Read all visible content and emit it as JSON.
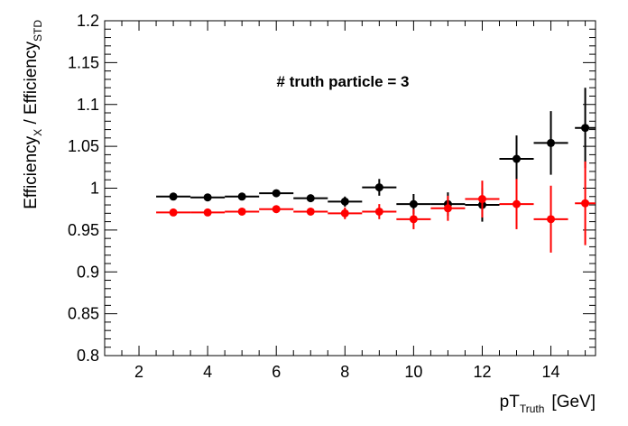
{
  "chart_data": {
    "type": "scatter",
    "annotation": "# truth particle = 3",
    "xlabel": {
      "main": "pT",
      "sub": "Truth",
      "unit": "[GeV]"
    },
    "ylabel": {
      "part1": "Efficiency",
      "sub1": "X",
      "separator": " / Efficiency",
      "sub2": "STD"
    },
    "xlim": [
      1,
      15.3
    ],
    "ylim": [
      0.8,
      1.2
    ],
    "x_ticks": [
      2,
      4,
      6,
      8,
      10,
      12,
      14
    ],
    "y_ticks": [
      0.8,
      0.85,
      0.9,
      0.95,
      1,
      1.05,
      1.1,
      1.15,
      1.2
    ],
    "y_tick_labels": [
      "0.8",
      "0.85",
      "0.9",
      "0.95",
      "1",
      "1.05",
      "1.1",
      "1.15",
      "1.2"
    ],
    "grid": false,
    "series": [
      {
        "color": "#000000",
        "points": [
          {
            "x": 3,
            "xerr": 0.5,
            "y": 0.99,
            "yerr": 0.003
          },
          {
            "x": 4,
            "xerr": 0.5,
            "y": 0.989,
            "yerr": 0.003
          },
          {
            "x": 5,
            "xerr": 0.5,
            "y": 0.99,
            "yerr": 0.003
          },
          {
            "x": 6,
            "xerr": 0.5,
            "y": 0.994,
            "yerr": 0.003
          },
          {
            "x": 7,
            "xerr": 0.5,
            "y": 0.988,
            "yerr": 0.004
          },
          {
            "x": 8,
            "xerr": 0.5,
            "y": 0.984,
            "yerr": 0.006
          },
          {
            "x": 9,
            "xerr": 0.5,
            "y": 1.001,
            "yerr": 0.01
          },
          {
            "x": 10,
            "xerr": 0.5,
            "y": 0.981,
            "yerr": 0.012
          },
          {
            "x": 11,
            "xerr": 0.5,
            "y": 0.981,
            "yerr": 0.014
          },
          {
            "x": 12,
            "xerr": 0.5,
            "y": 0.98,
            "yerr": 0.02
          },
          {
            "x": 13,
            "xerr": 0.5,
            "y": 1.035,
            "yerr": 0.028
          },
          {
            "x": 14,
            "xerr": 0.5,
            "y": 1.054,
            "yerr": 0.038
          },
          {
            "x": 15,
            "xerr": 0.3,
            "y": 1.072,
            "yerr": 0.048
          }
        ]
      },
      {
        "color": "#ff0000",
        "points": [
          {
            "x": 3,
            "xerr": 0.5,
            "y": 0.971,
            "yerr": 0.003
          },
          {
            "x": 4,
            "xerr": 0.5,
            "y": 0.971,
            "yerr": 0.003
          },
          {
            "x": 5,
            "xerr": 0.5,
            "y": 0.972,
            "yerr": 0.003
          },
          {
            "x": 6,
            "xerr": 0.5,
            "y": 0.975,
            "yerr": 0.003
          },
          {
            "x": 7,
            "xerr": 0.5,
            "y": 0.972,
            "yerr": 0.004
          },
          {
            "x": 8,
            "xerr": 0.5,
            "y": 0.97,
            "yerr": 0.007
          },
          {
            "x": 9,
            "xerr": 0.5,
            "y": 0.972,
            "yerr": 0.009
          },
          {
            "x": 10,
            "xerr": 0.5,
            "y": 0.963,
            "yerr": 0.012
          },
          {
            "x": 11,
            "xerr": 0.5,
            "y": 0.976,
            "yerr": 0.015
          },
          {
            "x": 12,
            "xerr": 0.5,
            "y": 0.987,
            "yerr": 0.022
          },
          {
            "x": 13,
            "xerr": 0.5,
            "y": 0.981,
            "yerr": 0.03
          },
          {
            "x": 14,
            "xerr": 0.5,
            "y": 0.963,
            "yerr": 0.04
          },
          {
            "x": 15,
            "xerr": 0.3,
            "y": 0.982,
            "yerr": 0.05
          }
        ]
      }
    ]
  }
}
